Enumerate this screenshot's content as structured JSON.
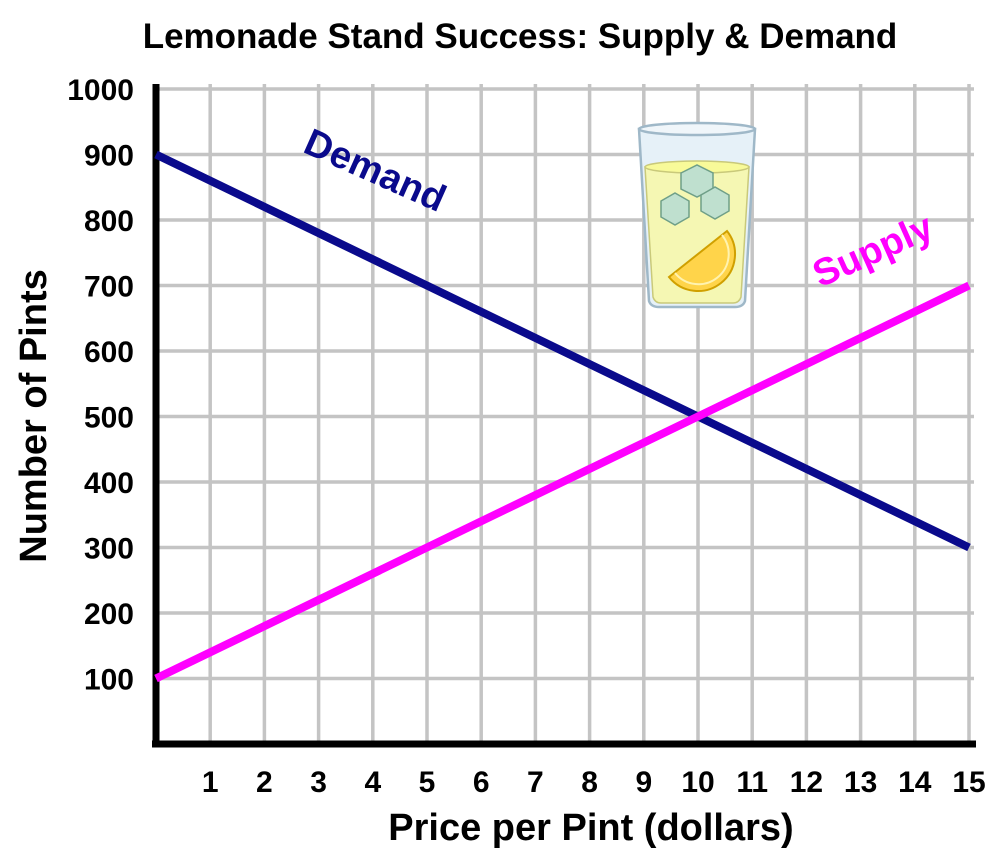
{
  "chart_data": {
    "type": "line",
    "title": "Lemonade Stand Success: Supply & Demand",
    "xlabel": "Price per Pint (dollars)",
    "ylabel": "Number of Pints",
    "xlim": [
      0,
      15
    ],
    "ylim": [
      0,
      1000
    ],
    "grid": true,
    "x_ticks": [
      1,
      2,
      3,
      4,
      5,
      6,
      7,
      8,
      9,
      10,
      11,
      12,
      13,
      14,
      15
    ],
    "y_ticks": [
      100,
      200,
      300,
      400,
      500,
      600,
      700,
      800,
      900,
      1000
    ],
    "series": [
      {
        "name": "Demand",
        "color": "#0a0a8c",
        "x": [
          0,
          15
        ],
        "y": [
          900,
          300
        ]
      },
      {
        "name": "Supply",
        "color": "#ff00ff",
        "x": [
          0,
          15
        ],
        "y": [
          100,
          700
        ]
      }
    ],
    "decoration": "lemonade-glass-icon"
  }
}
